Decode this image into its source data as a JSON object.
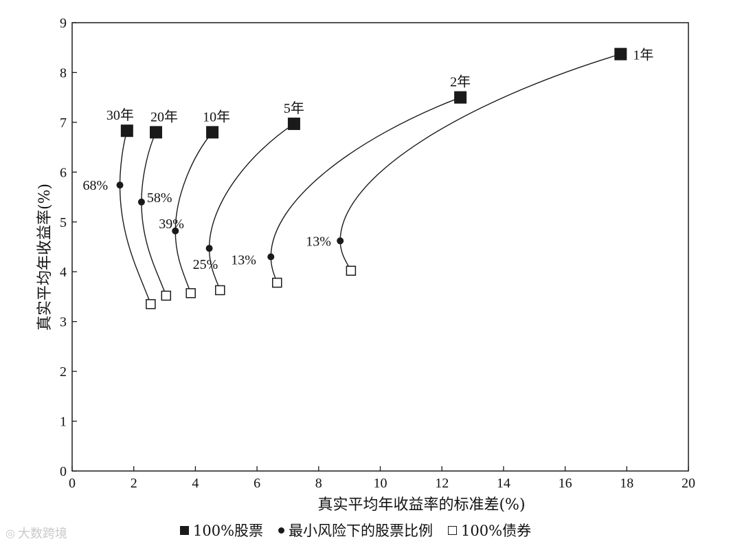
{
  "chart_data": {
    "type": "line",
    "xlabel": "真实平均年收益率的标准差(%)",
    "ylabel": "真实平均年收益率(%)",
    "xlim": [
      0,
      20
    ],
    "ylim": [
      0,
      9
    ],
    "xticks": [
      0,
      2,
      4,
      6,
      8,
      10,
      12,
      14,
      16,
      18,
      20
    ],
    "yticks": [
      0,
      1,
      2,
      3,
      4,
      5,
      6,
      7,
      8,
      9
    ],
    "grid": false,
    "legend_position": "bottom",
    "series": [
      {
        "name": "1年",
        "stocks": {
          "x": 17.8,
          "y": 8.37
        },
        "min_risk": {
          "x": 8.7,
          "y": 4.62,
          "label": "13%"
        },
        "bonds": {
          "x": 9.05,
          "y": 4.02
        }
      },
      {
        "name": "2年",
        "stocks": {
          "x": 12.6,
          "y": 7.5
        },
        "min_risk": {
          "x": 6.45,
          "y": 4.3,
          "label": "13%"
        },
        "bonds": {
          "x": 6.65,
          "y": 3.78
        }
      },
      {
        "name": "5年",
        "stocks": {
          "x": 7.2,
          "y": 6.97
        },
        "min_risk": {
          "x": 4.45,
          "y": 4.47,
          "label": "25%"
        },
        "bonds": {
          "x": 4.8,
          "y": 3.63
        }
      },
      {
        "name": "10年",
        "stocks": {
          "x": 4.55,
          "y": 6.8
        },
        "min_risk": {
          "x": 3.35,
          "y": 4.82,
          "label": "39%"
        },
        "bonds": {
          "x": 3.85,
          "y": 3.57
        }
      },
      {
        "name": "20年",
        "stocks": {
          "x": 2.72,
          "y": 6.8
        },
        "min_risk": {
          "x": 2.25,
          "y": 5.4,
          "label": "58%"
        },
        "bonds": {
          "x": 3.05,
          "y": 3.52
        }
      },
      {
        "name": "30年",
        "stocks": {
          "x": 1.78,
          "y": 6.83
        },
        "min_risk": {
          "x": 1.55,
          "y": 5.74,
          "label": "68%"
        },
        "bonds": {
          "x": 2.55,
          "y": 3.35
        }
      }
    ],
    "legend": {
      "stocks": "100%股票",
      "min_risk": "最小风险下的股票比例",
      "bonds": "100%债券"
    }
  },
  "watermark": "大数跨境",
  "colors": {
    "ink": "#1a1a1a",
    "watermark": "#c9c9c9"
  }
}
